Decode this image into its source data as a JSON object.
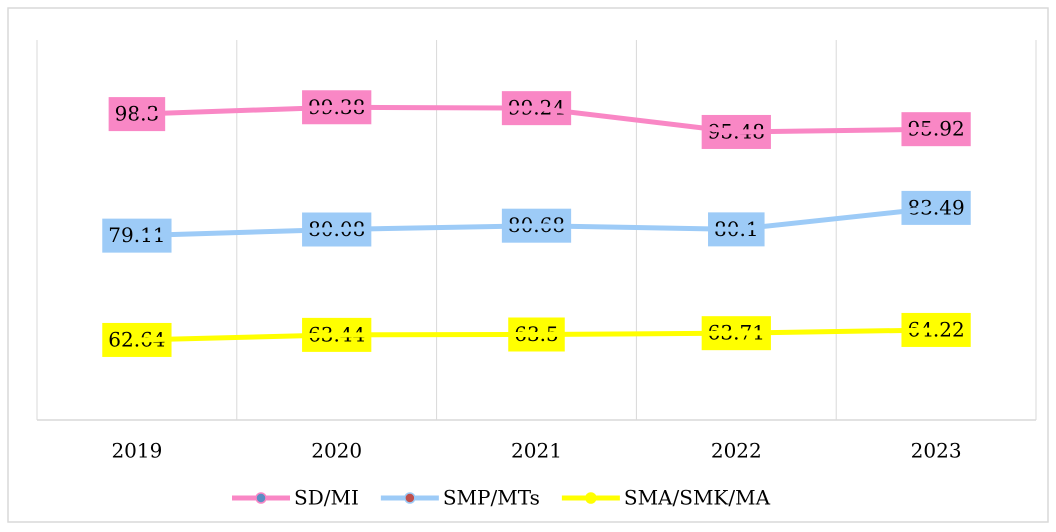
{
  "chart_data": {
    "type": "line",
    "categories": [
      "2019",
      "2020",
      "2021",
      "2022",
      "2023"
    ],
    "series": [
      {
        "name": "SD/MI",
        "color": "#f987c5",
        "marker_color": "#5b8ec4",
        "values": [
          98.3,
          99.38,
          99.24,
          95.48,
          95.92
        ]
      },
      {
        "name": "SMP/MTs",
        "color": "#9dcbf7",
        "marker_color": "#c0504d",
        "values": [
          79.11,
          80.08,
          80.68,
          80.1,
          83.49
        ]
      },
      {
        "name": "SMA/SMK/MA",
        "color": "#ffff00",
        "marker_color": "#ffff00",
        "values": [
          62.64,
          63.44,
          63.5,
          63.71,
          64.22
        ]
      }
    ],
    "ylim": [
      50,
      110
    ],
    "grid": true,
    "legend": "bottom"
  }
}
